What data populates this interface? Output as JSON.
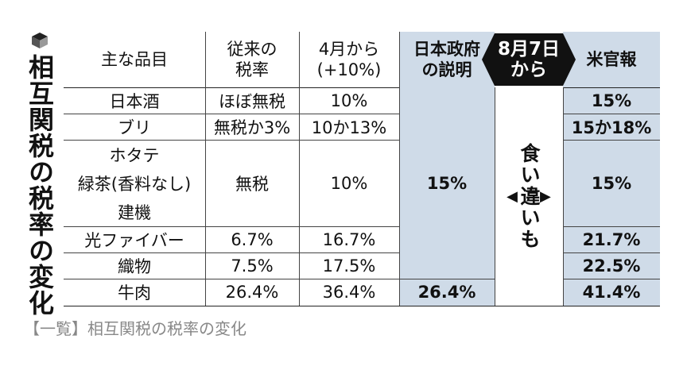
{
  "title": "相互関税の税率の変化",
  "headers": {
    "item": "主な品目",
    "previous_line1": "従来の",
    "previous_line2": "税率",
    "april_line1": "4月から",
    "april_line2": "(+10%)",
    "japan_line1": "日本政府",
    "japan_line2": "の説明",
    "from_line1": "8月7日",
    "from_line2": "から",
    "us": "米官報"
  },
  "rows": [
    {
      "item": "日本酒",
      "previous": "ほぼ無税",
      "april": "10%",
      "us": "15%"
    },
    {
      "item": "ブリ",
      "previous": "無税か3%",
      "april": "10か13%",
      "us": "15か18%"
    },
    {
      "items": [
        "ホタテ",
        "緑茶(香料なし)",
        "建機"
      ],
      "previous": "無税",
      "april": "10%",
      "us": "15%"
    },
    {
      "item": "光ファイバー",
      "previous": "6.7%",
      "april": "16.7%",
      "us": "21.7%"
    },
    {
      "item": "織物",
      "previous": "7.5%",
      "april": "17.5%",
      "us": "22.5%"
    },
    {
      "item": "牛肉",
      "previous": "26.4%",
      "april": "36.4%",
      "us": "41.4%"
    }
  ],
  "japan_values": {
    "merged": "15%",
    "beef": "26.4%"
  },
  "discrepancy": {
    "text": "食い違いも",
    "left_arrow": "◀",
    "right_arrow": "▶"
  },
  "caption": "【一覧】相互関税の税率の変化"
}
